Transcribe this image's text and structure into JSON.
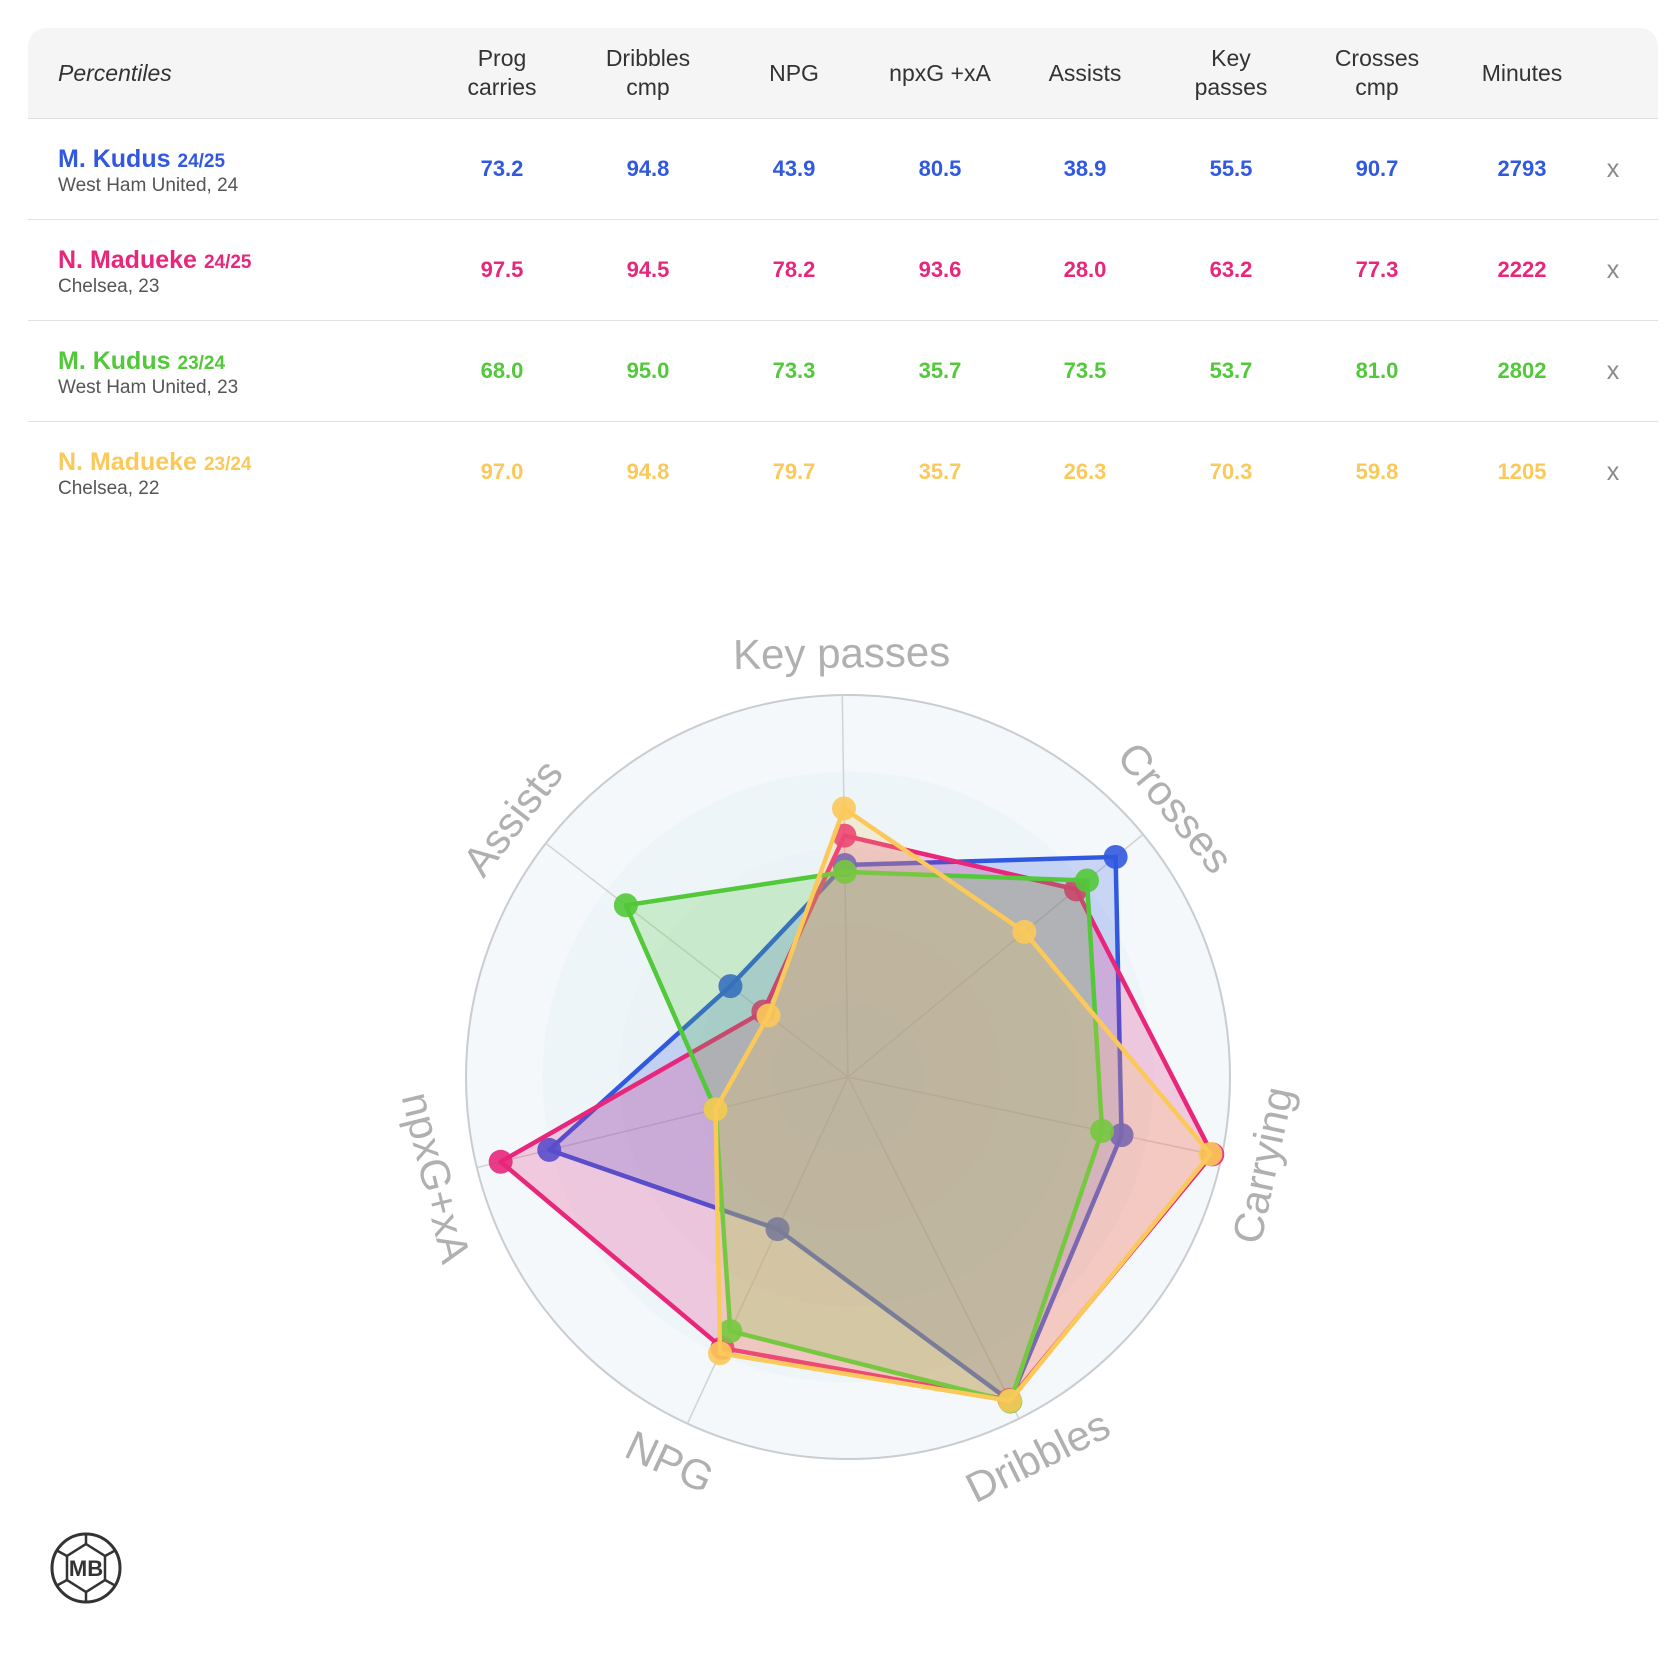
{
  "table": {
    "header_label": "Percentiles",
    "columns": [
      [
        "Prog",
        "carries"
      ],
      [
        "Dribbles",
        "cmp"
      ],
      [
        "NPG"
      ],
      [
        "npxG +xA"
      ],
      [
        "Assists"
      ],
      [
        "Key",
        "passes"
      ],
      [
        "Crosses",
        "cmp"
      ],
      [
        "Minutes"
      ]
    ],
    "remove_label": "x",
    "rows": [
      {
        "name": "M. Kudus",
        "season": "24/25",
        "team": "West Ham United, 24",
        "color": "#3159e0",
        "values": [
          "73.2",
          "94.8",
          "43.9",
          "80.5",
          "38.9",
          "55.5",
          "90.7",
          "2793"
        ]
      },
      {
        "name": "N. Madueke",
        "season": "24/25",
        "team": "Chelsea, 23",
        "color": "#e8267a",
        "values": [
          "97.5",
          "94.5",
          "78.2",
          "93.6",
          "28.0",
          "63.2",
          "77.3",
          "2222"
        ]
      },
      {
        "name": "M. Kudus",
        "season": "23/24",
        "team": "West Ham United, 23",
        "color": "#52c83a",
        "values": [
          "68.0",
          "95.0",
          "73.3",
          "35.7",
          "73.5",
          "53.7",
          "81.0",
          "2802"
        ]
      },
      {
        "name": "N. Madueke",
        "season": "23/24",
        "team": "Chelsea, 22",
        "color": "#fbc95a",
        "values": [
          "97.0",
          "94.8",
          "79.7",
          "35.7",
          "26.3",
          "70.3",
          "59.8",
          "1205"
        ]
      }
    ]
  },
  "chart_data": {
    "type": "radar",
    "axes": [
      "Key passes",
      "Crosses",
      "Carrying",
      "Dribbles",
      "NPG",
      "npxG+xA",
      "Assists"
    ],
    "range": [
      0,
      100
    ],
    "series": [
      {
        "name": "M. Kudus 24/25",
        "color": "#3159e0",
        "values": [
          55.5,
          90.7,
          73.2,
          94.8,
          43.9,
          80.5,
          38.9
        ]
      },
      {
        "name": "N. Madueke 24/25",
        "color": "#e8267a",
        "values": [
          63.2,
          77.3,
          97.5,
          94.5,
          78.2,
          93.6,
          28.0
        ]
      },
      {
        "name": "M. Kudus 23/24",
        "color": "#52c83a",
        "values": [
          53.7,
          81.0,
          68.0,
          95.0,
          73.3,
          35.7,
          73.5
        ]
      },
      {
        "name": "N. Madueke 23/24",
        "color": "#fbc95a",
        "values": [
          70.3,
          59.8,
          97.0,
          94.8,
          79.7,
          35.7,
          26.3
        ]
      }
    ]
  },
  "logo": {
    "text": "MB"
  }
}
